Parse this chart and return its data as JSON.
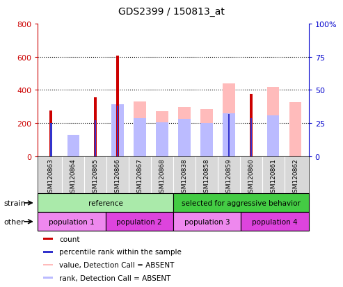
{
  "title": "GDS2399 / 150813_at",
  "samples": [
    "GSM120863",
    "GSM120864",
    "GSM120865",
    "GSM120866",
    "GSM120867",
    "GSM120868",
    "GSM120838",
    "GSM120858",
    "GSM120859",
    "GSM120860",
    "GSM120861",
    "GSM120862"
  ],
  "count": [
    275,
    0,
    355,
    608,
    0,
    0,
    0,
    0,
    0,
    375,
    0,
    0
  ],
  "percentile_rank": [
    200,
    0,
    215,
    305,
    0,
    0,
    0,
    0,
    255,
    230,
    0,
    0
  ],
  "absent_value": [
    0,
    115,
    0,
    0,
    330,
    270,
    295,
    285,
    440,
    0,
    420,
    325
  ],
  "absent_rank": [
    0,
    130,
    0,
    315,
    230,
    205,
    225,
    200,
    260,
    0,
    245,
    0
  ],
  "count_color": "#cc0000",
  "rank_color": "#3333cc",
  "absent_value_color": "#ffbbbb",
  "absent_rank_color": "#bbbbff",
  "ylim_left": [
    0,
    800
  ],
  "ylim_right": [
    0,
    100
  ],
  "yticks_left": [
    0,
    200,
    400,
    600,
    800
  ],
  "yticks_right": [
    0,
    25,
    50,
    75,
    100
  ],
  "strain_labels": [
    {
      "text": "reference",
      "start": 0,
      "end": 6,
      "color": "#aaeaaa"
    },
    {
      "text": "selected for aggressive behavior",
      "start": 6,
      "end": 12,
      "color": "#44cc44"
    }
  ],
  "other_labels": [
    {
      "text": "population 1",
      "start": 0,
      "end": 3,
      "color": "#ee88ee"
    },
    {
      "text": "population 2",
      "start": 3,
      "end": 6,
      "color": "#dd44dd"
    },
    {
      "text": "population 3",
      "start": 6,
      "end": 9,
      "color": "#ee88ee"
    },
    {
      "text": "population 4",
      "start": 9,
      "end": 12,
      "color": "#dd44dd"
    }
  ],
  "left_axis_color": "#cc0000",
  "right_axis_color": "#0000cc",
  "bar_bg_color": "#d8d8d8"
}
